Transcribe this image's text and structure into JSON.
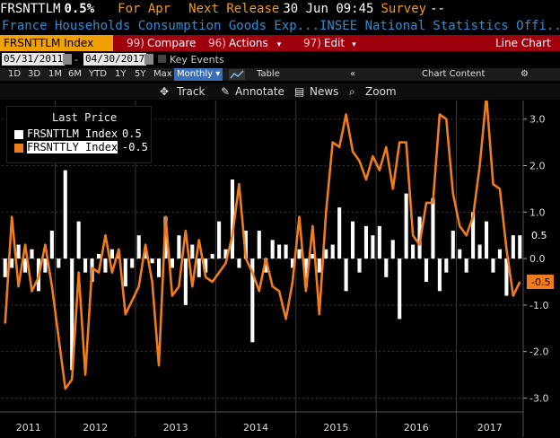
{
  "header": {
    "ticker": "FRSNTTLM",
    "last_value": "0.5%",
    "for_label": "For Apr",
    "next_release_label": "Next Release",
    "next_release_time": "30 Jun 09:45",
    "survey_label": "Survey",
    "survey_value": "--"
  },
  "description": "France Households Consumption Goods Exp...INSEE National Statistics Offi...",
  "toolbar": {
    "security": "FRSNTTLM Index",
    "compare_num": "99)",
    "compare": "Compare",
    "actions_num": "96)",
    "actions": "Actions",
    "edit_num": "97)",
    "edit": "Edit",
    "chart_type": "Line Chart"
  },
  "date_range": {
    "start": "05/31/2011",
    "end": "04/30/2017",
    "key_events": "Key Events"
  },
  "periods": {
    "items": [
      "1D",
      "3D",
      "1M",
      "6M",
      "YTD",
      "1Y",
      "5Y",
      "Max"
    ],
    "frequency": "Monthly",
    "table": "Table",
    "chart_content": "Chart Content"
  },
  "chart_tools": {
    "track": "Track",
    "annotate": "Annotate",
    "news": "News",
    "zoom": "Zoom"
  },
  "legend": {
    "header": "Last Price",
    "series": [
      {
        "label": "FRSNTTLM Index",
        "value": "0.5",
        "color": "#ffffff"
      },
      {
        "label": "FRSNTTLY Index",
        "value": "-0.5",
        "color": "#f07c1c"
      }
    ]
  },
  "colors": {
    "accent": "#f07c1c",
    "toolbar_red": "#a0000d",
    "toolbar_amber": "#f0a000"
  },
  "chart_data": {
    "type": "bar",
    "x_start": "2011-05",
    "x_labels": [
      "2011",
      "2012",
      "2013",
      "2014",
      "2015",
      "2016",
      "2017"
    ],
    "ylim": [
      -3.3,
      3.4
    ],
    "y_ticks": [
      "3.0",
      "2.0",
      "1.0",
      "0.0",
      "-1.0",
      "-2.0",
      "-3.0"
    ],
    "y_tick_values": [
      3,
      2,
      1,
      0,
      -1,
      -2,
      -3
    ],
    "series": [
      {
        "name": "FRSNTTLM Index",
        "type": "bar",
        "color": "#ffffff",
        "last_label": "0.5",
        "values": [
          -0.4,
          -0.2,
          0.3,
          -0.3,
          0.2,
          -0.7,
          -0.3,
          0.6,
          -0.2,
          1.9,
          -2.4,
          0.8,
          -0.3,
          -0.5,
          0.1,
          -0.3,
          0.2,
          0.1,
          -0.6,
          -0.2,
          0.5,
          0.2,
          -0.1,
          -0.4,
          0.9,
          -0.2,
          0.5,
          -1.0,
          0.3,
          -0.4,
          -0.3,
          0.1,
          0.8,
          0.2,
          1.7,
          -0.2,
          0.6,
          -1.8,
          0.6,
          -0.3,
          0.4,
          0.3,
          0.3,
          -0.2,
          0.2,
          -0.6,
          0.1,
          -0.3,
          0.2,
          0.3,
          1.1,
          -0.7,
          0.8,
          -0.3,
          0.7,
          0.5,
          0.7,
          -0.4,
          0.4,
          -1.3,
          1.4,
          0.3,
          0.9,
          -0.5,
          1.3,
          -0.7,
          -0.3,
          0.6,
          0.2,
          -0.3,
          1.0,
          0.3,
          0.8,
          -0.3,
          0.2,
          -0.8,
          0.5,
          0.5
        ]
      },
      {
        "name": "FRSNTTLY Index",
        "type": "line",
        "color": "#f07c1c",
        "last_label": "-0.5",
        "values": [
          -1.4,
          0.9,
          -0.6,
          0.3,
          -0.7,
          -0.4,
          0.3,
          -0.6,
          -1.7,
          -2.8,
          -2.6,
          -0.3,
          -2.5,
          -0.2,
          -0.3,
          0.5,
          -0.3,
          0.2,
          -1.2,
          -0.9,
          -0.6,
          0.3,
          -0.5,
          -2.3,
          0.9,
          -0.8,
          -0.6,
          0.6,
          -0.6,
          0.4,
          -0.4,
          -0.5,
          -0.3,
          -0.1,
          0.5,
          1.6,
          0.0,
          -0.3,
          -0.7,
          0.0,
          -0.6,
          -0.7,
          -1.3,
          -0.5,
          0.9,
          -0.7,
          0.7,
          -1.2,
          1.0,
          2.5,
          2.4,
          3.1,
          2.3,
          2.1,
          1.7,
          2.2,
          1.9,
          2.4,
          1.5,
          2.5,
          2.5,
          0.5,
          0.3,
          1.2,
          1.2,
          3.1,
          3.0,
          1.4,
          0.7,
          0.5,
          0.9,
          2.0,
          3.5,
          1.6,
          1.5,
          0.2,
          -0.8,
          -0.5
        ]
      }
    ]
  }
}
